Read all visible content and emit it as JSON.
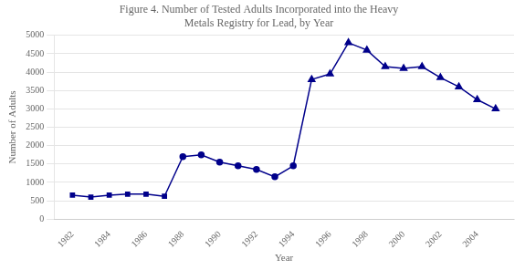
{
  "chart_data": {
    "type": "line",
    "title": "Figure 4. Number of Tested Adults Incorporated into the Heavy\nMetals Registry for Lead, by Year",
    "x_label": "Year",
    "y_label": "Number of Adults",
    "xlim": [
      1981,
      2006
    ],
    "xticks": [
      1982,
      1984,
      1986,
      1988,
      1990,
      1992,
      1994,
      1996,
      1998,
      2000,
      2002,
      2004
    ],
    "ylim": [
      0,
      5000
    ],
    "yticks": [
      0,
      500,
      1000,
      1500,
      2000,
      2500,
      3000,
      3500,
      4000,
      4500,
      5000
    ],
    "grid": true,
    "series": [
      {
        "color": "#00008B",
        "marker": "square",
        "line_style": "solid",
        "x": [
          1982,
          1983,
          1984,
          1985,
          1986,
          1987
        ],
        "values": [
          650,
          600,
          650,
          680,
          680,
          620
        ]
      },
      {
        "color": "#00008B",
        "marker": "circle",
        "line_style": "solid",
        "x": [
          1988,
          1989,
          1990,
          1991,
          1992,
          1993,
          1994
        ],
        "values": [
          1700,
          1750,
          1550,
          1450,
          1350,
          1150,
          1450
        ]
      },
      {
        "color": "#00008B",
        "marker": "triangle",
        "line_style": "solid",
        "x": [
          1995,
          1996,
          1997,
          1998,
          1999,
          2000,
          2001,
          2002,
          2003,
          2004,
          2005
        ],
        "values": [
          3800,
          3950,
          4800,
          4600,
          4150,
          4100,
          4150,
          3850,
          3600,
          3250,
          3000
        ]
      }
    ]
  }
}
